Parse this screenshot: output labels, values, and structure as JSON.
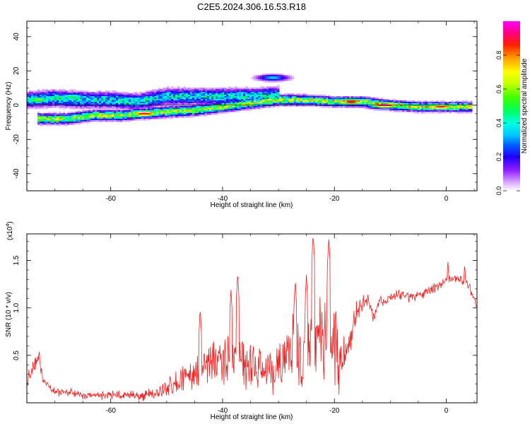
{
  "title": "C2E5.2024.306.16.53.R18",
  "chart_data": [
    {
      "type": "heatmap",
      "xlabel": "Height of straight line (km)",
      "ylabel": "Frequency (Hz)",
      "xlim": [
        -75,
        5.5
      ],
      "ylim": [
        -50,
        49
      ],
      "xticks": [
        -60,
        -40,
        -20,
        0
      ],
      "yticks": [
        -40,
        -20,
        0,
        20,
        40
      ],
      "colorbar": {
        "label": "Normalized spectral amplitude",
        "range": [
          0,
          1
        ],
        "ticks": [
          0.0,
          0.2,
          0.4,
          0.6,
          0.8
        ],
        "tick_labels": [
          "0.0",
          "0.2",
          "0.4",
          "0.6",
          "0.8"
        ],
        "colormap": [
          "#ffffff",
          "#c080ff",
          "#7000ff",
          "#0000ff",
          "#00c0ff",
          "#00ffff",
          "#00ff60",
          "#80ff00",
          "#ffff00",
          "#ff9000",
          "#ff0000",
          "#ff0080",
          "#ff00ff"
        ]
      },
      "ridges": [
        {
          "name": "upper",
          "points": [
            [
              -75,
              3
            ],
            [
              -70,
              4
            ],
            [
              -65,
              3
            ],
            [
              -60,
              3
            ],
            [
              -55,
              2
            ],
            [
              -50,
              5
            ],
            [
              -45,
              5
            ],
            [
              -40,
              5
            ],
            [
              -35,
              5
            ],
            [
              -30,
              6
            ]
          ],
          "width": 3.5,
          "amp": 0.45
        },
        {
          "name": "lower",
          "points": [
            [
              -73,
              -8
            ],
            [
              -68,
              -8
            ],
            [
              -63,
              -6
            ],
            [
              -58,
              -6
            ],
            [
              -55,
              -5
            ],
            [
              -50,
              -4
            ],
            [
              -45,
              -3
            ],
            [
              -40,
              -1
            ],
            [
              -35,
              1
            ],
            [
              -30,
              3
            ],
            [
              -25,
              3
            ]
          ],
          "width": 2.2,
          "amp": 0.7
        },
        {
          "name": "main",
          "points": [
            [
              -25,
              3
            ],
            [
              -20,
              2
            ],
            [
              -15,
              2
            ],
            [
              -10,
              0
            ],
            [
              -5,
              -1
            ],
            [
              0,
              -1
            ],
            [
              4.5,
              -1
            ]
          ],
          "width": 2.0,
          "amp": 0.75
        }
      ],
      "hotspots": [
        {
          "x": -63,
          "y": -6,
          "amp": 0.55
        },
        {
          "x": -54,
          "y": -5,
          "amp": 0.95
        },
        {
          "x": -46,
          "y": -3,
          "amp": 0.6
        },
        {
          "x": -17,
          "y": 2,
          "amp": 0.95
        },
        {
          "x": -11,
          "y": 0,
          "amp": 1.0
        },
        {
          "x": -6,
          "y": -1,
          "amp": 0.7
        },
        {
          "x": -1,
          "y": -1,
          "amp": 0.9
        },
        {
          "x": -31,
          "y": 16,
          "amp": 0.35
        },
        {
          "x": -73,
          "y": 3,
          "amp": 0.6
        },
        {
          "x": -67,
          "y": 5,
          "amp": 0.5
        }
      ]
    },
    {
      "type": "line",
      "xlabel": "Height of straight line (km)",
      "ylabel": "SNR (10 * v/v)",
      "y_multiplier_label": "(x10",
      "y_multiplier_exponent": "4",
      "y_multiplier_close": ")",
      "xlim": [
        -75,
        5.5
      ],
      "ylim": [
        0,
        1.78
      ],
      "xticks": [
        -60,
        -40,
        -20,
        0
      ],
      "yticks": [
        0.5,
        1.0,
        1.5
      ],
      "ytick_labels": [
        "0.5",
        "1.0",
        "1.5"
      ],
      "color": "#ee2222",
      "envelope": [
        [
          -75,
          0.25
        ],
        [
          -74,
          0.35
        ],
        [
          -73,
          0.45
        ],
        [
          -72,
          0.25
        ],
        [
          -70,
          0.12
        ],
        [
          -65,
          0.08
        ],
        [
          -60,
          0.08
        ],
        [
          -55,
          0.08
        ],
        [
          -52,
          0.1
        ],
        [
          -50,
          0.14
        ],
        [
          -48,
          0.2
        ],
        [
          -46,
          0.3
        ],
        [
          -44,
          0.35
        ],
        [
          -42,
          0.4
        ],
        [
          -40,
          0.4
        ],
        [
          -38,
          0.45
        ],
        [
          -36,
          0.42
        ],
        [
          -34,
          0.38
        ],
        [
          -32,
          0.35
        ],
        [
          -30,
          0.35
        ],
        [
          -28,
          0.5
        ],
        [
          -26,
          0.55
        ],
        [
          -24,
          0.7
        ],
        [
          -22,
          0.65
        ],
        [
          -20,
          0.55
        ],
        [
          -18,
          0.45
        ],
        [
          -17,
          0.7
        ],
        [
          -16,
          1.0
        ],
        [
          -14,
          1.1
        ],
        [
          -13,
          0.9
        ],
        [
          -12,
          1.05
        ],
        [
          -10,
          1.12
        ],
        [
          -8,
          1.15
        ],
        [
          -6,
          1.1
        ],
        [
          -4,
          1.15
        ],
        [
          -2,
          1.22
        ],
        [
          0,
          1.3
        ],
        [
          2,
          1.3
        ],
        [
          4,
          1.25
        ],
        [
          5.5,
          1.0
        ]
      ],
      "noise": [
        [
          -75,
          0.06
        ],
        [
          -70,
          0.04
        ],
        [
          -60,
          0.04
        ],
        [
          -52,
          0.05
        ],
        [
          -48,
          0.12
        ],
        [
          -44,
          0.2
        ],
        [
          -40,
          0.25
        ],
        [
          -36,
          0.25
        ],
        [
          -32,
          0.2
        ],
        [
          -28,
          0.3
        ],
        [
          -24,
          0.45
        ],
        [
          -20,
          0.4
        ],
        [
          -17,
          0.12
        ],
        [
          -14,
          0.06
        ],
        [
          -5,
          0.04
        ],
        [
          5.5,
          0.05
        ]
      ],
      "peaks": [
        {
          "x": -72.8,
          "y": 0.58
        },
        {
          "x": -37.3,
          "y": 1.38
        },
        {
          "x": -23.8,
          "y": 1.78
        },
        {
          "x": -21,
          "y": 1.75
        },
        {
          "x": -44,
          "y": 1.0
        },
        {
          "x": -38.5,
          "y": 1.2
        },
        {
          "x": -27,
          "y": 1.3
        },
        {
          "x": -25,
          "y": 1.35
        },
        {
          "x": 0.3,
          "y": 1.5
        },
        {
          "x": 3.3,
          "y": 1.48
        }
      ]
    }
  ]
}
